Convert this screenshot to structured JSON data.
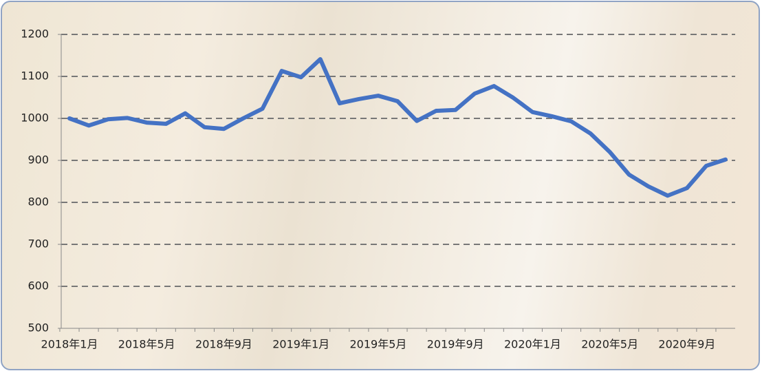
{
  "chart_data": {
    "type": "line",
    "categories": [
      "2018年1月",
      null,
      null,
      null,
      "2018年5月",
      null,
      null,
      null,
      "2018年9月",
      null,
      null,
      null,
      "2019年1月",
      null,
      null,
      null,
      "2019年5月",
      null,
      null,
      null,
      "2019年9月",
      null,
      null,
      null,
      "2020年1月",
      null,
      null,
      null,
      "2020年5月",
      null,
      null,
      null,
      "2020年9月",
      null,
      null
    ],
    "series": [
      {
        "color": "#4472c4",
        "values": [
          1000,
          983,
          998,
          1001,
          990,
          987,
          1012,
          979,
          975,
          1000,
          1023,
          1113,
          1098,
          1141,
          1036,
          1046,
          1054,
          1041,
          994,
          1018,
          1020,
          1059,
          1077,
          1049,
          1015,
          1005,
          993,
          964,
          920,
          866,
          838,
          816,
          834,
          887,
          902
        ]
      }
    ],
    "ylim": [
      500,
      1200
    ],
    "yticks": [
      500,
      600,
      700,
      800,
      900,
      1000,
      1100,
      1200
    ],
    "grid": true
  }
}
